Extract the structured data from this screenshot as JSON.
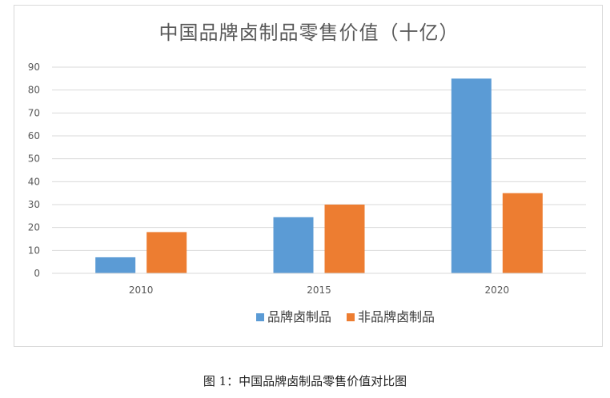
{
  "chart_data": {
    "type": "bar",
    "title": "中国品牌卤制品零售价值（十亿）",
    "categories": [
      "2010",
      "2015",
      "2020"
    ],
    "series": [
      {
        "name": "品牌卤制品",
        "values": [
          7,
          24.5,
          85
        ],
        "color": "#5b9bd5"
      },
      {
        "name": "非品牌卤制品",
        "values": [
          18,
          30,
          35
        ],
        "color": "#ed7d31"
      }
    ],
    "yticks": [
      "0",
      "10",
      "20",
      "30",
      "40",
      "50",
      "60",
      "70",
      "80",
      "90"
    ],
    "ylim": [
      0,
      90
    ],
    "grid": true,
    "legend": "bottom"
  },
  "caption": "图 1：中国品牌卤制品零售价值对比图"
}
